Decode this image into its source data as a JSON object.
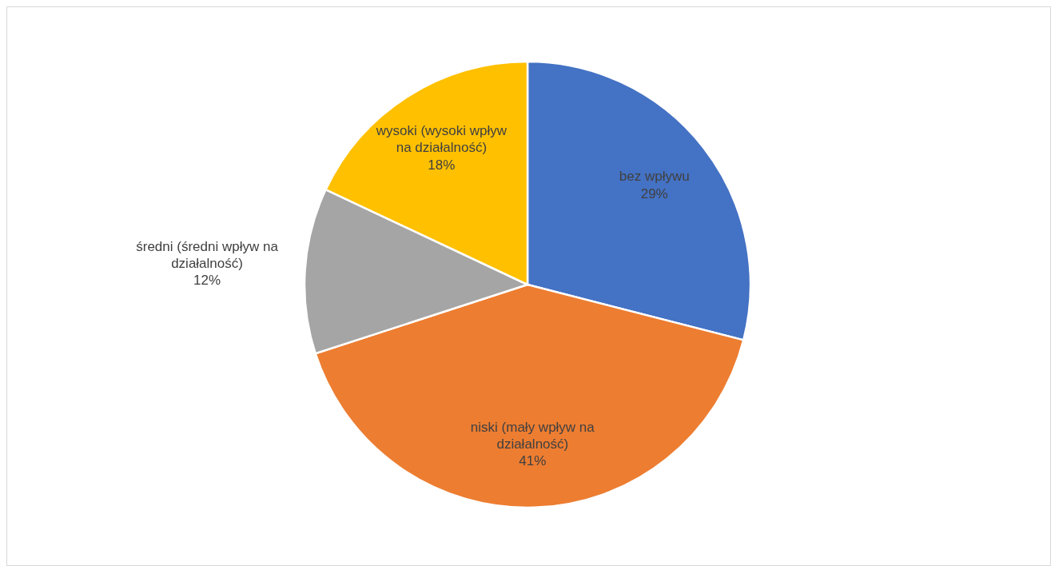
{
  "chart_data": {
    "type": "pie",
    "categories": [
      "bez wpływu",
      "niski (mały wpływ na działalność)",
      "średni (średni wpływ na działalność)",
      "wysoki (wysoki wpływ na działalność)"
    ],
    "values": [
      29,
      41,
      12,
      18
    ],
    "value_labels": [
      "29%",
      "41%",
      "12%",
      "18%"
    ],
    "colors": [
      "#4472c4",
      "#ed7d31",
      "#a5a5a5",
      "#ffc000"
    ]
  }
}
